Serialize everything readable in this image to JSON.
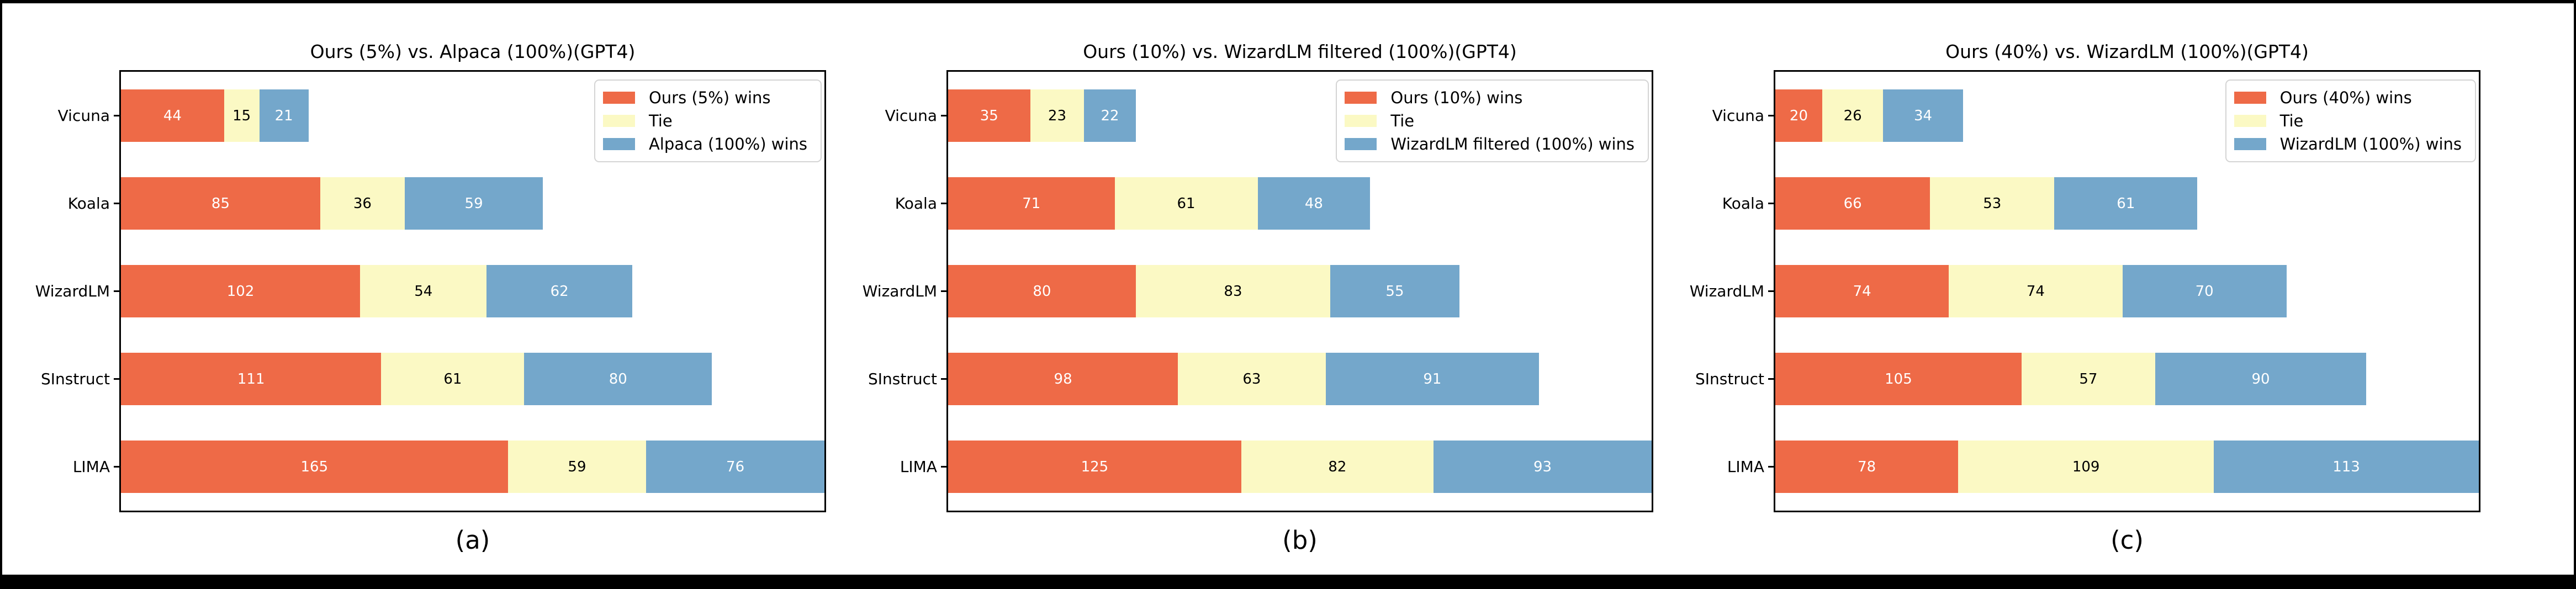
{
  "style": {
    "figure_background": "#ffffff",
    "frame_color": "#000000",
    "legend_border_color": "#d4d4d4",
    "series_colors": {
      "ours": "#ee6a47",
      "tie": "#fbf9c4",
      "baseline": "#74a7cb"
    },
    "value_label_colors": {
      "ours": "#ffffff",
      "tie": "#000000",
      "baseline": "#ffffff"
    }
  },
  "chart_data": [
    {
      "type": "bar",
      "orientation": "horizontal",
      "stacked": true,
      "grid": false,
      "legend_position": "upper right",
      "title": "Ours (5%) vs. Alpaca (100%)(GPT4)",
      "caption": "(a)",
      "categories": [
        "Vicuna",
        "Koala",
        "WizardLM",
        "SInstruct",
        "LIMA"
      ],
      "xlim": [
        0,
        300
      ],
      "series": [
        {
          "name": "Ours (5%) wins",
          "color_key": "ours",
          "values": [
            44,
            85,
            102,
            111,
            165
          ]
        },
        {
          "name": "Tie",
          "color_key": "tie",
          "values": [
            15,
            36,
            54,
            61,
            59
          ]
        },
        {
          "name": "Alpaca (100%) wins",
          "color_key": "baseline",
          "values": [
            21,
            59,
            62,
            80,
            76
          ]
        }
      ]
    },
    {
      "type": "bar",
      "orientation": "horizontal",
      "stacked": true,
      "grid": false,
      "legend_position": "upper right",
      "title": "Ours (10%) vs. WizardLM filtered (100%)(GPT4)",
      "caption": "(b)",
      "categories": [
        "Vicuna",
        "Koala",
        "WizardLM",
        "SInstruct",
        "LIMA"
      ],
      "xlim": [
        0,
        300
      ],
      "series": [
        {
          "name": "Ours (10%) wins",
          "color_key": "ours",
          "values": [
            35,
            71,
            80,
            98,
            125
          ]
        },
        {
          "name": "Tie",
          "color_key": "tie",
          "values": [
            23,
            61,
            83,
            63,
            82
          ]
        },
        {
          "name": "WizardLM filtered (100%) wins",
          "color_key": "baseline",
          "values": [
            22,
            48,
            55,
            91,
            93
          ]
        }
      ]
    },
    {
      "type": "bar",
      "orientation": "horizontal",
      "stacked": true,
      "grid": false,
      "legend_position": "upper right",
      "title": "Ours (40%) vs. WizardLM (100%)(GPT4)",
      "caption": "(c)",
      "categories": [
        "Vicuna",
        "Koala",
        "WizardLM",
        "SInstruct",
        "LIMA"
      ],
      "xlim": [
        0,
        300
      ],
      "series": [
        {
          "name": "Ours (40%) wins",
          "color_key": "ours",
          "values": [
            20,
            66,
            74,
            105,
            78
          ]
        },
        {
          "name": "Tie",
          "color_key": "tie",
          "values": [
            26,
            53,
            74,
            57,
            109
          ]
        },
        {
          "name": "WizardLM (100%) wins",
          "color_key": "baseline",
          "values": [
            34,
            61,
            70,
            90,
            113
          ]
        }
      ]
    }
  ]
}
